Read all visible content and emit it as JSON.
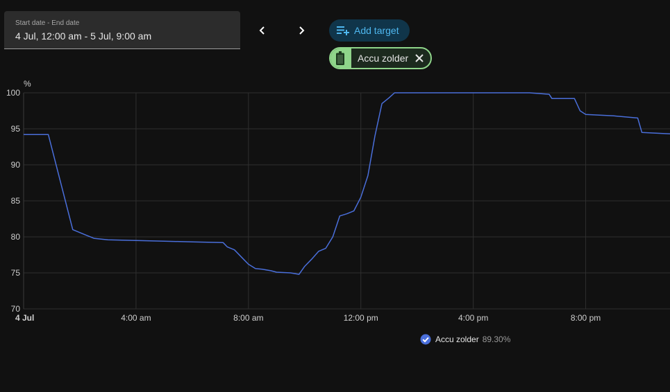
{
  "date_picker": {
    "label": "Start date - End date",
    "value": "4 Jul, 12:00 am - 5 Jul, 9:00 am"
  },
  "toolbar": {
    "add_target_label": "Add target"
  },
  "target_chip": {
    "label": "Accu zolder",
    "color": "#8fd58a"
  },
  "chart_data": {
    "type": "line",
    "unit_label": "%",
    "ylim": [
      70,
      100
    ],
    "y_ticks": [
      100,
      95,
      90,
      85,
      80,
      75,
      70
    ],
    "x_unit": "hours since 4 Jul 00:00",
    "xlim": [
      0,
      23
    ],
    "x_ticks": [
      {
        "hour": 0,
        "label": "4 Jul",
        "bold": true
      },
      {
        "hour": 4,
        "label": "4:00 am"
      },
      {
        "hour": 8,
        "label": "8:00 am"
      },
      {
        "hour": 12,
        "label": "12:00 pm"
      },
      {
        "hour": 16,
        "label": "4:00 pm"
      },
      {
        "hour": 20,
        "label": "8:00 pm"
      }
    ],
    "grid": true,
    "line_color": "#4a6fdb",
    "series": [
      {
        "name": "Accu zolder",
        "current_value": "89.30%",
        "x": [
          0,
          0.88,
          1.75,
          2.5,
          3.0,
          4.0,
          5.0,
          6.0,
          7.1,
          7.25,
          7.5,
          7.8,
          8.0,
          8.25,
          8.5,
          8.8,
          9.0,
          9.5,
          9.8,
          10.0,
          10.25,
          10.5,
          10.75,
          11.0,
          11.25,
          11.5,
          11.75,
          12.0,
          12.25,
          12.5,
          12.75,
          13.0,
          13.2,
          13.3,
          16.0,
          18.0,
          18.7,
          18.8,
          19.6,
          19.8,
          20.0,
          21.0,
          21.85,
          22.0,
          23.0
        ],
        "y": [
          94.2,
          94.2,
          81.0,
          79.8,
          79.6,
          79.5,
          79.4,
          79.3,
          79.2,
          78.6,
          78.2,
          77.0,
          76.2,
          75.6,
          75.5,
          75.3,
          75.1,
          75.0,
          74.8,
          75.9,
          76.9,
          78.0,
          78.4,
          80.0,
          82.9,
          83.2,
          83.6,
          85.5,
          88.5,
          94.0,
          98.5,
          99.3,
          100.0,
          100.0,
          100.0,
          100.0,
          99.8,
          99.2,
          99.2,
          97.5,
          97.0,
          96.8,
          96.5,
          94.5,
          94.3
        ]
      }
    ]
  }
}
